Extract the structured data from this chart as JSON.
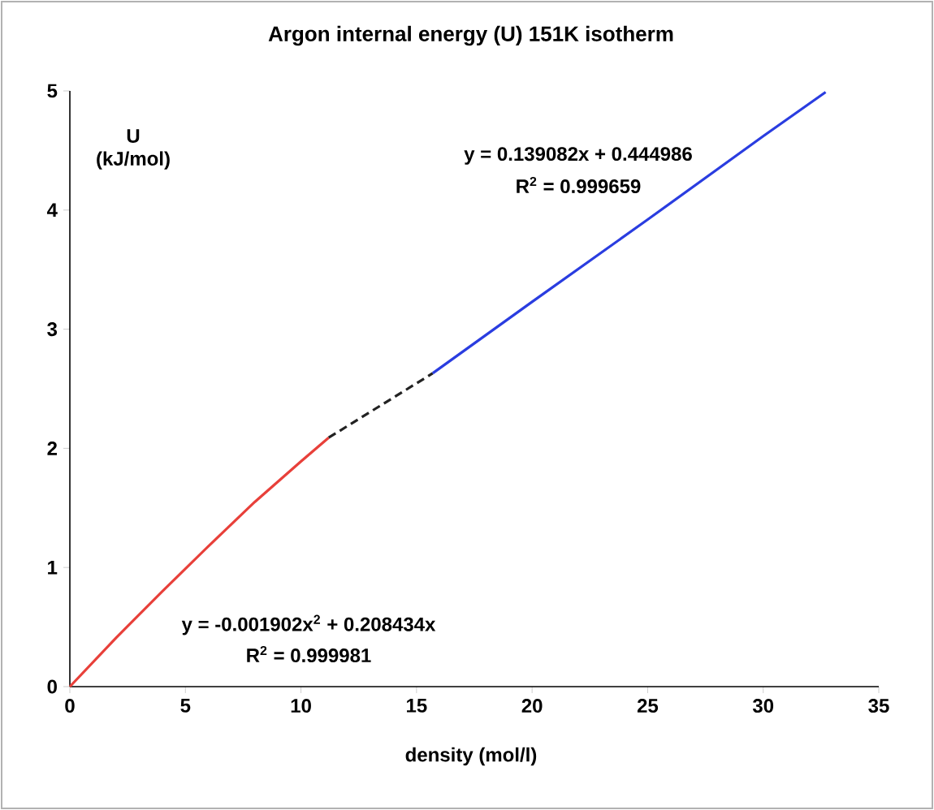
{
  "chart_data": {
    "type": "line",
    "title": "Argon internal energy (U) 151K isotherm",
    "xlabel": "density (mol/l)",
    "ylabel": "U (kJ/mol)",
    "xlim": [
      0,
      35
    ],
    "ylim": [
      0,
      5
    ],
    "xticks": [
      0,
      5,
      10,
      15,
      20,
      25,
      30,
      35
    ],
    "yticks": [
      0,
      1,
      2,
      3,
      4,
      5
    ],
    "grid": false,
    "marker": "none",
    "series": [
      {
        "color": "#e8403a",
        "line_style": "solid",
        "x": [
          0,
          2,
          4,
          6,
          8,
          10,
          11.2
        ],
        "values": [
          0,
          0.41,
          0.8,
          1.18,
          1.55,
          1.89,
          2.09
        ]
      },
      {
        "color": "#222222",
        "line_style": "dashed",
        "x": [
          11.2,
          15.7
        ],
        "values": [
          2.09,
          2.63
        ]
      },
      {
        "color": "#2a3de0",
        "line_style": "solid",
        "x": [
          15.7,
          20,
          25,
          30,
          32.7
        ],
        "values": [
          2.63,
          3.23,
          3.92,
          4.62,
          4.99
        ]
      }
    ],
    "annotations": [
      "y = 0.139082x + 0.444986",
      "R$^{2}$ = 0.999659",
      "y = -0.001902x$^{2}$ + 0.208434x",
      "R$^{2}$ = 0.999981"
    ]
  }
}
